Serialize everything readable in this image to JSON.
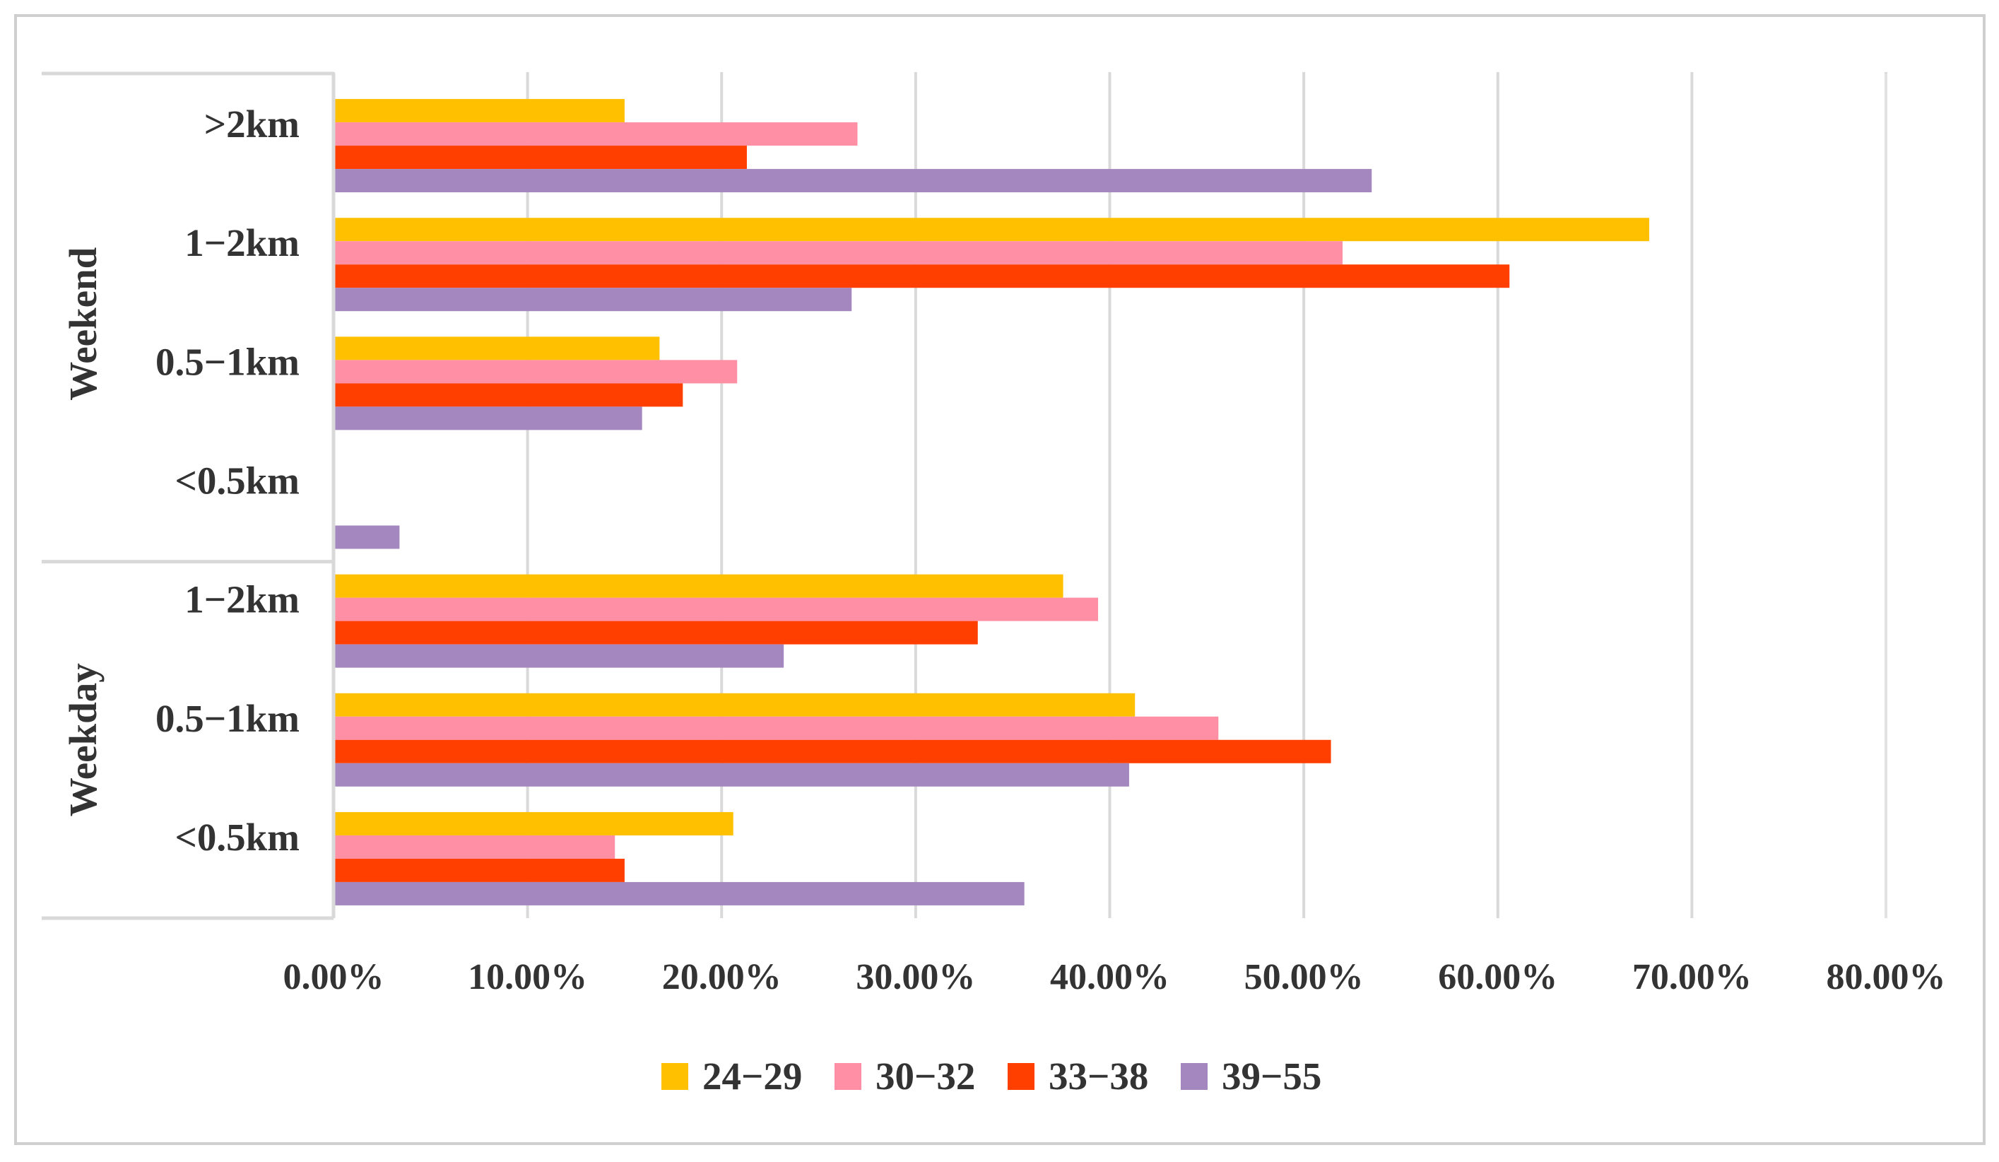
{
  "chart_data": {
    "type": "bar",
    "orientation": "horizontal",
    "title": "",
    "xlabel": "",
    "ylabel": "",
    "xlim": [
      0,
      80
    ],
    "x_ticks": [
      "0.00%",
      "10.00%",
      "20.00%",
      "30.00%",
      "40.00%",
      "50.00%",
      "60.00%",
      "70.00%",
      "80.00%"
    ],
    "grid": true,
    "legend_position": "bottom",
    "groups": [
      {
        "name": "Weekend",
        "categories": [
          ">2km",
          "1−2km",
          "0.5−1km",
          "<0.5km"
        ]
      },
      {
        "name": "Weekday",
        "categories": [
          "1−2km",
          "0.5−1km",
          "<0.5km"
        ]
      }
    ],
    "series": [
      {
        "name": "24−29",
        "color": "#FFC000",
        "values": [
          15.0,
          67.8,
          16.8,
          0.0,
          37.6,
          41.3,
          20.6
        ]
      },
      {
        "name": "30−32",
        "color": "#FF8FA5",
        "values": [
          27.0,
          52.0,
          20.8,
          0.0,
          39.4,
          45.6,
          14.5
        ]
      },
      {
        "name": "33−38",
        "color": "#FF3F00",
        "values": [
          21.3,
          60.6,
          18.0,
          0.0,
          33.2,
          51.4,
          15.0
        ]
      },
      {
        "name": "39−55",
        "color": "#A587C0",
        "values": [
          53.5,
          26.7,
          15.9,
          3.4,
          23.2,
          41.0,
          35.6
        ]
      }
    ]
  }
}
